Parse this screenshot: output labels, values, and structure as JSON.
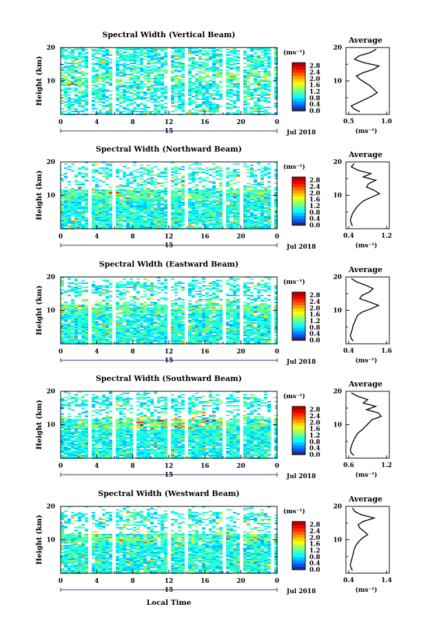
{
  "figure": {
    "xlabel": "Local Time",
    "date_label": "Jul 2018",
    "day_label": "15",
    "ylabel": "Height (km)",
    "avg_title": "Average",
    "colorbar_unit": "(ms⁻¹)",
    "avg_xlabel": "(ms⁻¹)"
  },
  "chart_data": [
    {
      "type": "heatmap",
      "title": "Spectral Width (Vertical Beam)",
      "x_ticks": [
        "0",
        "4",
        "8",
        "12",
        "16",
        "20",
        "0"
      ],
      "xlim": [
        0,
        24
      ],
      "ylim": [
        0,
        20
      ],
      "y_ticks": [
        "10",
        "20"
      ],
      "colorbar_ticks": [
        "0.0",
        "0.4",
        "0.8",
        "1.2",
        "1.6",
        "2.0",
        "2.4",
        "2.8"
      ],
      "colorbar_range": [
        0.0,
        3.0
      ],
      "data_gaps_hours": [
        [
          3.0,
          3.4
        ],
        [
          5.6,
          6.0
        ],
        [
          11.8,
          12.2
        ],
        [
          13.6,
          14.0
        ],
        [
          17.8,
          18.2
        ],
        [
          19.8,
          20.2
        ],
        [
          23.0,
          23.4
        ]
      ],
      "average": {
        "xlim": [
          0.5,
          1.0
        ],
        "x_ticks": [
          "0.5",
          "1.0"
        ],
        "x": [
          0.85,
          0.78,
          0.65,
          0.6,
          0.7,
          0.88,
          0.82,
          0.7,
          0.62,
          0.66,
          0.72,
          0.78,
          0.82,
          0.86,
          0.8,
          0.72,
          0.64,
          0.56,
          0.6,
          0.66
        ],
        "y": [
          19.5,
          18.5,
          17.5,
          16.5,
          15.5,
          14.5,
          13.5,
          12.5,
          11.5,
          10.5,
          9.5,
          8.5,
          7.5,
          6.5,
          5.5,
          4.5,
          3.5,
          2.5,
          1.5,
          0.8
        ]
      }
    },
    {
      "type": "heatmap",
      "title": "Spectral Width (Northward Beam)",
      "x_ticks": [
        "0",
        "4",
        "8",
        "12",
        "16",
        "20",
        "0"
      ],
      "xlim": [
        0,
        24
      ],
      "ylim": [
        0,
        20
      ],
      "y_ticks": [
        "10",
        "20"
      ],
      "colorbar_ticks": [
        "0.0",
        "0.4",
        "0.8",
        "1.2",
        "1.6",
        "2.0",
        "2.4",
        "2.8"
      ],
      "colorbar_range": [
        0.0,
        3.0
      ],
      "data_gaps_hours": [
        [
          3.0,
          3.4
        ],
        [
          5.6,
          6.0
        ],
        [
          11.8,
          12.2
        ],
        [
          13.6,
          14.0
        ],
        [
          17.8,
          18.2
        ],
        [
          19.8,
          20.2
        ],
        [
          23.0,
          23.4
        ]
      ],
      "average": {
        "xlim": [
          0.4,
          1.2
        ],
        "x_ticks": [
          "0.4",
          "1.2"
        ],
        "x": [
          0.55,
          0.5,
          0.62,
          0.86,
          0.72,
          0.95,
          0.82,
          0.78,
          0.92,
          1.02,
          0.88,
          0.74,
          0.66,
          0.6,
          0.56,
          0.52,
          0.5,
          0.48,
          0.5,
          0.52
        ],
        "y": [
          19.5,
          18.5,
          17.5,
          16.5,
          15.5,
          14.5,
          13.5,
          12.5,
          11.5,
          10.5,
          9.5,
          8.5,
          7.5,
          6.5,
          5.5,
          4.5,
          3.5,
          2.5,
          1.5,
          0.8
        ]
      }
    },
    {
      "type": "heatmap",
      "title": "Spectral Width (Eastward Beam)",
      "x_ticks": [
        "0",
        "4",
        "8",
        "12",
        "16",
        "20",
        "0"
      ],
      "xlim": [
        0,
        24
      ],
      "ylim": [
        0,
        20
      ],
      "y_ticks": [
        "10",
        "20"
      ],
      "colorbar_ticks": [
        "0.0",
        "0.4",
        "0.8",
        "1.2",
        "1.6",
        "2.0",
        "2.4",
        "2.8"
      ],
      "colorbar_range": [
        0.0,
        3.0
      ],
      "data_gaps_hours": [
        [
          3.0,
          3.4
        ],
        [
          5.6,
          6.0
        ],
        [
          11.8,
          12.2
        ],
        [
          13.6,
          14.0
        ],
        [
          17.8,
          18.2
        ],
        [
          19.8,
          20.2
        ],
        [
          23.0,
          23.4
        ]
      ],
      "average": {
        "xlim": [
          0.4,
          1.6
        ],
        "x_ticks": [
          "0.4",
          "1.6"
        ],
        "x": [
          0.55,
          0.7,
          0.95,
          1.15,
          1.05,
          0.85,
          0.78,
          1.05,
          1.3,
          1.1,
          0.85,
          0.72,
          0.68,
          0.64,
          0.6,
          0.58,
          0.55,
          0.52,
          0.55,
          0.6
        ],
        "y": [
          19.5,
          18.5,
          17.5,
          16.5,
          15.5,
          14.5,
          13.5,
          12.5,
          11.5,
          10.5,
          9.5,
          8.5,
          7.5,
          6.5,
          5.5,
          4.5,
          3.5,
          2.5,
          1.5,
          0.8
        ]
      }
    },
    {
      "type": "heatmap",
      "title": "Spectral Width (Southward Beam)",
      "x_ticks": [
        "0",
        "4",
        "8",
        "12",
        "16",
        "20",
        "0"
      ],
      "xlim": [
        0,
        24
      ],
      "ylim": [
        0,
        20
      ],
      "y_ticks": [
        "10",
        "20"
      ],
      "colorbar_ticks": [
        "0.0",
        "0.4",
        "0.8",
        "1.2",
        "1.6",
        "2.0",
        "2.4",
        "2.8"
      ],
      "colorbar_range": [
        0.0,
        3.0
      ],
      "data_gaps_hours": [
        [
          3.0,
          3.4
        ],
        [
          5.6,
          6.0
        ],
        [
          8.0,
          8.3
        ],
        [
          11.8,
          12.2
        ],
        [
          13.6,
          14.0
        ],
        [
          17.8,
          18.2
        ],
        [
          19.8,
          20.2
        ],
        [
          23.0,
          23.4
        ]
      ],
      "average": {
        "xlim": [
          0.4,
          1.2
        ],
        "x_ticks": [
          "0.6",
          "1.2"
        ],
        "x": [
          0.5,
          0.62,
          0.8,
          0.72,
          0.95,
          0.78,
          1.0,
          1.05,
          0.88,
          0.82,
          0.76,
          0.7,
          0.62,
          0.58,
          0.55,
          0.52,
          0.5,
          0.48,
          0.5,
          0.55
        ],
        "y": [
          19.5,
          18.5,
          17.5,
          16.5,
          15.5,
          14.5,
          13.5,
          12.5,
          11.5,
          10.5,
          9.5,
          8.5,
          7.5,
          6.5,
          5.5,
          4.5,
          3.5,
          2.5,
          1.5,
          0.8
        ]
      }
    },
    {
      "type": "heatmap",
      "title": "Spectral Width (Westward Beam)",
      "x_ticks": [
        "0",
        "4",
        "8",
        "12",
        "16",
        "20",
        "0"
      ],
      "xlim": [
        0,
        24
      ],
      "ylim": [
        0,
        20
      ],
      "y_ticks": [
        "10",
        "20"
      ],
      "colorbar_ticks": [
        "0.0",
        "0.4",
        "0.8",
        "1.2",
        "1.6",
        "2.0",
        "2.4",
        "2.8"
      ],
      "colorbar_range": [
        0.0,
        3.0
      ],
      "data_gaps_hours": [
        [
          3.0,
          3.4
        ],
        [
          5.6,
          6.0
        ],
        [
          11.8,
          12.2
        ],
        [
          13.6,
          14.0
        ],
        [
          17.8,
          18.2
        ],
        [
          19.8,
          20.2
        ],
        [
          23.0,
          23.4
        ]
      ],
      "average": {
        "xlim": [
          0.4,
          1.4
        ],
        "x_ticks": [
          "0.4",
          "1.4"
        ],
        "x": [
          0.55,
          0.6,
          0.75,
          1.05,
          0.8,
          0.68,
          0.72,
          0.82,
          0.9,
          0.78,
          0.7,
          0.64,
          0.6,
          0.58,
          0.56,
          0.54,
          0.52,
          0.5,
          0.52,
          0.55
        ],
        "y": [
          19.5,
          18.5,
          17.5,
          16.5,
          15.5,
          14.5,
          13.5,
          12.5,
          11.5,
          10.5,
          9.5,
          8.5,
          7.5,
          6.5,
          5.5,
          4.5,
          3.5,
          2.5,
          1.5,
          0.8
        ]
      }
    }
  ]
}
